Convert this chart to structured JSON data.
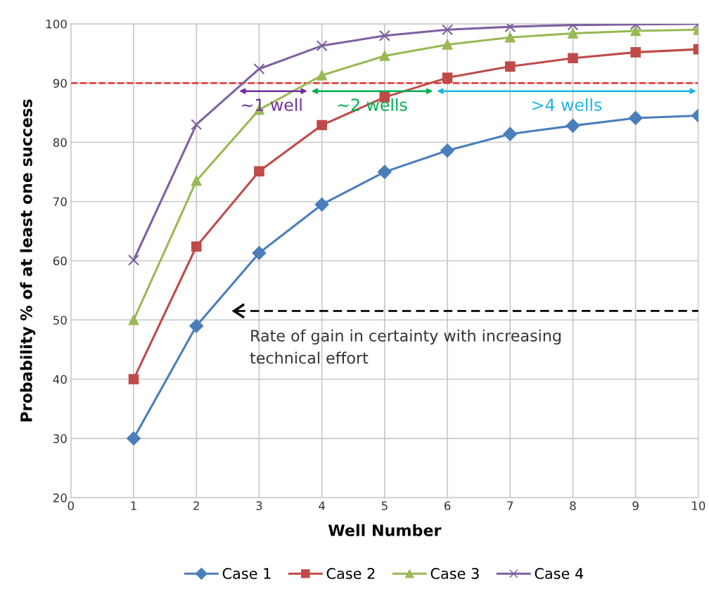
{
  "chart_data": {
    "type": "line",
    "xlabel": "Well Number",
    "ylabel": "Probability % of at least one success",
    "x": [
      1,
      2,
      3,
      4,
      5,
      6,
      7,
      8,
      9,
      10
    ],
    "series": [
      {
        "name": "Case 1",
        "color": "#4a7ebb",
        "marker": "diamond",
        "values": [
          30,
          49,
          61.3,
          69.5,
          75,
          78.6,
          81.4,
          82.8,
          84.1,
          84.5
        ]
      },
      {
        "name": "Case 2",
        "color": "#be4b48",
        "marker": "square",
        "values": [
          40,
          62.4,
          75.1,
          82.9,
          87.6,
          90.9,
          92.8,
          94.2,
          95.2,
          95.7
        ]
      },
      {
        "name": "Case 3",
        "color": "#98b954",
        "marker": "triangle",
        "values": [
          50,
          73.5,
          85.5,
          91.3,
          94.6,
          96.5,
          97.7,
          98.4,
          98.8,
          99.0
        ]
      },
      {
        "name": "Case 4",
        "color": "#7d60a0",
        "marker": "cross",
        "values": [
          60.1,
          83.0,
          92.4,
          96.3,
          98.0,
          99.0,
          99.5,
          99.8,
          99.9,
          100
        ]
      }
    ],
    "xlim": [
      0,
      10
    ],
    "xticks": [
      0,
      1,
      2,
      3,
      4,
      5,
      6,
      7,
      8,
      9,
      10
    ],
    "ylim": [
      20,
      100
    ],
    "yticks": [
      20,
      30,
      40,
      50,
      60,
      70,
      80,
      90,
      100
    ],
    "ref_lines": [
      {
        "axis": "y",
        "value": 90,
        "color": "#e03030",
        "line_style": "dashed"
      }
    ],
    "annotations": [
      "~1 well",
      "~2 wells",
      ">4 wells",
      "Rate of gain in certainty with increasing\ntechnical effort"
    ],
    "grid": true,
    "legend": "bottom",
    "line_style": "solid"
  }
}
